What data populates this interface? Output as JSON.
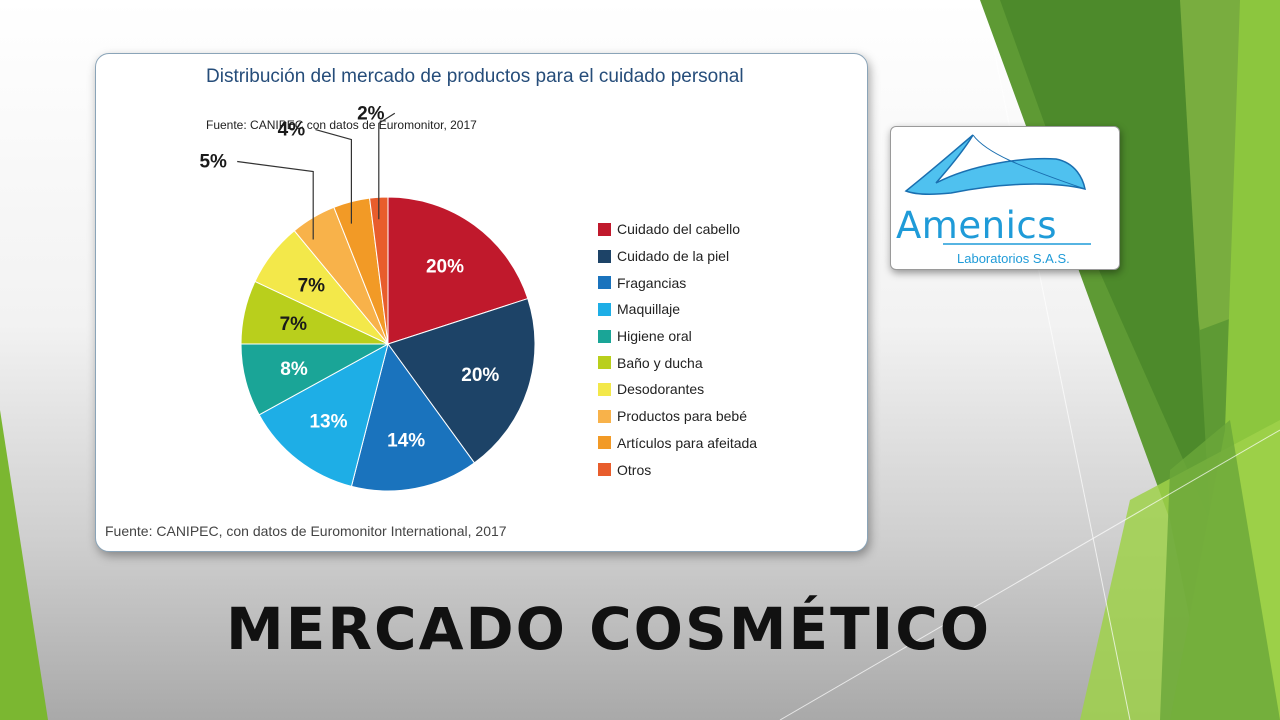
{
  "slide": {
    "title": "MERCADO COSMÉTICO"
  },
  "chart_card": {
    "footer": "Fuente: CANIPEC, con datos de Euromonitor International, 2017"
  },
  "logo": {
    "brand": "Amenics",
    "subtitle": "Laboratorios S.A.S."
  },
  "colors": {
    "green_dark": "#4f8a2c",
    "green_mid": "#6aa63a",
    "green_light": "#8cc63e",
    "title_blue": "#264d7a"
  },
  "chart_data": {
    "type": "pie",
    "title": "Distribución del mercado de productos para el cuidado personal",
    "subtitle": "Fuente: CANIPEC con datos de Euromonitor, 2017",
    "categories": [
      "Cuidado del cabello",
      "Cuidado de la piel",
      "Fragancias",
      "Maquillaje",
      "Higiene oral",
      "Baño y ducha",
      "Desodorantes",
      "Productos para bebé",
      "Artículos para afeitada",
      "Otros"
    ],
    "values": [
      20,
      20,
      14,
      13,
      8,
      7,
      7,
      5,
      4,
      2
    ],
    "labels": [
      "20%",
      "20%",
      "14%",
      "13%",
      "8%",
      "7%",
      "7%",
      "5%",
      "4%",
      "2%"
    ],
    "colors": [
      "#c0192c",
      "#1d4367",
      "#1a73bd",
      "#1eaee6",
      "#1aa597",
      "#b9cf1c",
      "#f3e84a",
      "#f8b24a",
      "#f29a26",
      "#e85d2c"
    ],
    "legend_position": "right"
  }
}
